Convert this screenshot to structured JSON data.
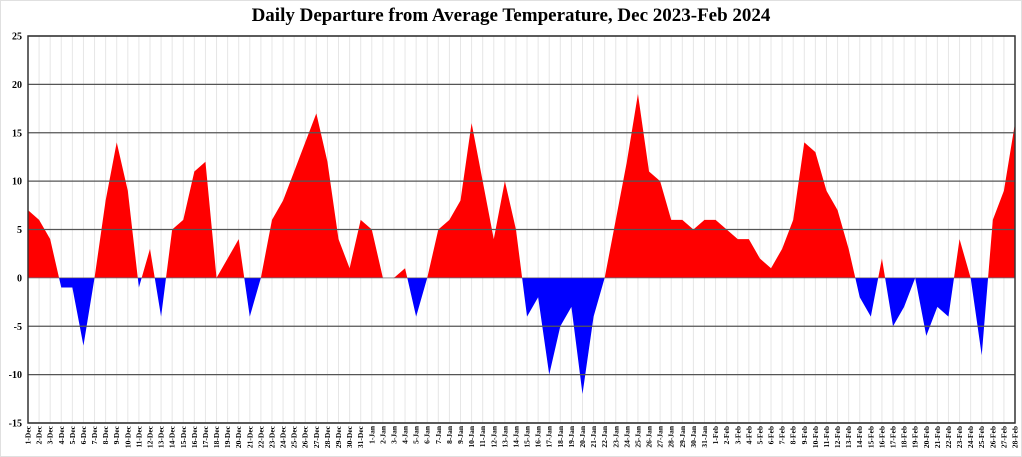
{
  "chart_data": {
    "type": "area",
    "title": "Daily Departure from Average Temperature, Dec 2023-Feb 2024",
    "xlabel": "",
    "ylabel": "",
    "ylim": [
      -15,
      25
    ],
    "yticks": [
      25,
      20,
      15,
      10,
      5,
      0,
      -5,
      -10,
      -15
    ],
    "grid": true,
    "colors": {
      "positive": "#ff0000",
      "negative": "#0000ff",
      "grid_major": "#555555",
      "grid_minor": "#e6e6e6"
    },
    "categories": [
      "1-Dec",
      "2-Dec",
      "3-Dec",
      "4-Dec",
      "5-Dec",
      "6-Dec",
      "7-Dec",
      "8-Dec",
      "9-Dec",
      "10-Dec",
      "11-Dec",
      "12-Dec",
      "13-Dec",
      "14-Dec",
      "15-Dec",
      "16-Dec",
      "17-Dec",
      "18-Dec",
      "19-Dec",
      "20-Dec",
      "21-Dec",
      "22-Dec",
      "23-Dec",
      "24-Dec",
      "25-Dec",
      "26-Dec",
      "27-Dec",
      "28-Dec",
      "29-Dec",
      "30-Dec",
      "31-Dec",
      "1-Jan",
      "2-Jan",
      "3-Jan",
      "4-Jan",
      "5-Jan",
      "6-Jan",
      "7-Jan",
      "8-Jan",
      "9-Jan",
      "10-Jan",
      "11-Jan",
      "12-Jan",
      "13-Jan",
      "14-Jan",
      "15-Jan",
      "16-Jan",
      "17-Jan",
      "18-Jan",
      "19-Jan",
      "20-Jan",
      "21-Jan",
      "22-Jan",
      "23-Jan",
      "24-Jan",
      "25-Jan",
      "26-Jan",
      "27-Jan",
      "28-Jan",
      "29-Jan",
      "30-Jan",
      "31-Jan",
      "1-Feb",
      "2-Feb",
      "3-Feb",
      "4-Feb",
      "5-Feb",
      "6-Feb",
      "7-Feb",
      "8-Feb",
      "9-Feb",
      "10-Feb",
      "11-Feb",
      "12-Feb",
      "13-Feb",
      "14-Feb",
      "15-Feb",
      "16-Feb",
      "17-Feb",
      "18-Feb",
      "19-Feb",
      "20-Feb",
      "21-Feb",
      "22-Feb",
      "23-Feb",
      "24-Feb",
      "25-Feb",
      "26-Feb",
      "27-Feb",
      "28-Feb"
    ],
    "values": [
      7,
      6,
      4,
      -1,
      -1,
      -7,
      0,
      8,
      14,
      9,
      -1,
      3,
      -4,
      5,
      6,
      11,
      12,
      0,
      2,
      4,
      -4,
      0,
      6,
      8,
      11,
      14,
      17,
      12,
      4,
      1,
      6,
      5,
      0,
      0,
      1,
      -4,
      0,
      5,
      6,
      8,
      16,
      10,
      4,
      10,
      5,
      -4,
      -2,
      -10,
      -5,
      -3,
      -12,
      -4,
      0,
      6,
      12,
      19,
      11,
      10,
      6,
      6,
      5,
      6,
      6,
      5,
      4,
      4,
      2,
      1,
      3,
      6,
      14,
      13,
      9,
      7,
      3,
      -2,
      -4,
      2,
      -5,
      -3,
      0,
      -6,
      -3,
      -4,
      4,
      0,
      -8,
      6,
      9,
      16
    ]
  }
}
